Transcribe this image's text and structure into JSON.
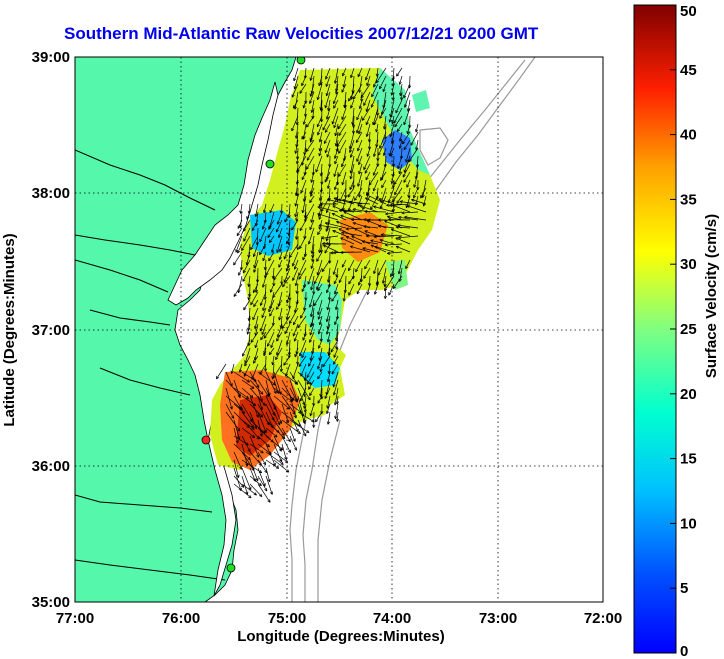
{
  "title": "Southern Mid-Atlantic Raw Velocities 2007/12/21 0200 GMT",
  "x_axis": {
    "label": "Longitude (Degrees:Minutes)",
    "ticks": [
      "77:00",
      "76:00",
      "75:00",
      "74:00",
      "73:00",
      "72:00"
    ]
  },
  "y_axis": {
    "label": "Latitude (Degrees:Minutes)",
    "ticks": [
      "39:00",
      "38:00",
      "37:00",
      "36:00",
      "35:00"
    ]
  },
  "colorbar": {
    "label": "Surface Velocity (cm/s)",
    "ticks": [
      "50",
      "45",
      "40",
      "35",
      "30",
      "25",
      "20",
      "15",
      "10",
      "5",
      "0"
    ],
    "min": 0,
    "max": 50,
    "colormap": "jet"
  },
  "colors": {
    "land": "#55f7aa",
    "water": "#ffffff",
    "title": "#0000ee",
    "site_active": "#22dd22",
    "site_alert": "#ff2222",
    "bathymetry": "#999999"
  },
  "sites": [
    {
      "lon": -74.95,
      "lat": 39.0,
      "status": "active"
    },
    {
      "lon": -75.15,
      "lat": 38.2,
      "status": "active"
    },
    {
      "lon": -75.72,
      "lat": 36.18,
      "status": "alert"
    },
    {
      "lon": -75.52,
      "lat": 35.25,
      "status": "active"
    }
  ]
}
